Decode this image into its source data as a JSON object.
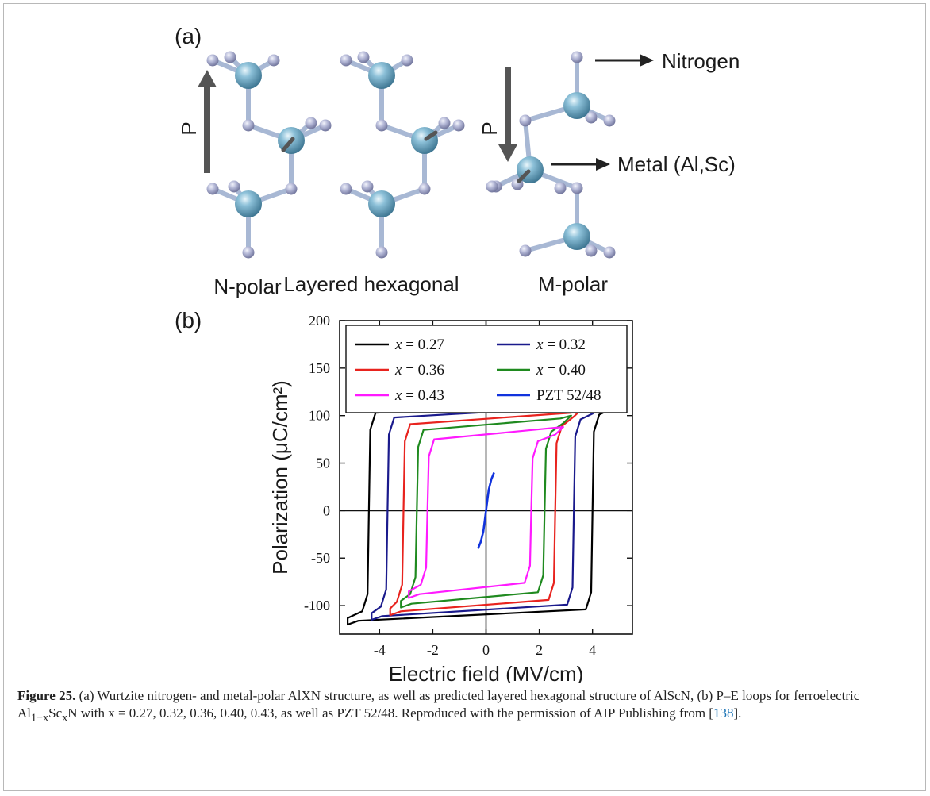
{
  "panel_a": {
    "label": "(a)",
    "structures": [
      {
        "name": "N-polar",
        "arrow_label": "P",
        "arrow_dir": "up"
      },
      {
        "name": "Layered hexagonal"
      },
      {
        "name": "M-polar",
        "arrow_label": "P",
        "arrow_dir": "down"
      }
    ],
    "legend": {
      "nitrogen": "Nitrogen",
      "metal": "Metal (Al,Sc)"
    },
    "colors": {
      "metal_atom": "#5d97b3",
      "nitrogen_atom": "#9ea3c6",
      "bond": "#a8b8d4",
      "arrow": "#555555"
    }
  },
  "panel_b": {
    "label": "(b)"
  },
  "chart_data": {
    "type": "line",
    "xlabel": "Electric field (MV/cm)",
    "ylabel": "Polarization (μC/cm²)",
    "xlim": [
      -5.5,
      5.5
    ],
    "ylim": [
      -130,
      200
    ],
    "xticks": [
      -4,
      -2,
      0,
      2,
      4
    ],
    "xtick_labels": [
      "-4",
      "-2",
      "0",
      "2",
      "4"
    ],
    "yticks": [
      -100,
      -50,
      0,
      50,
      100,
      150,
      200
    ],
    "ytick_labels": [
      "-100",
      "-50",
      "0",
      "50",
      "100",
      "150",
      "200"
    ],
    "zero_lines": true,
    "legend_position": "top",
    "series": [
      {
        "name": "x = 0.27",
        "color": "#000000",
        "ec_pos": 4.0,
        "ec_neg": -4.4,
        "pr_top": 105,
        "pr_bot": -108,
        "ps": 118,
        "x_max": 5.2
      },
      {
        "name": "x = 0.32",
        "color": "#1a1a8c",
        "ec_pos": 3.3,
        "ec_neg": -3.7,
        "pr_top": 100,
        "pr_bot": -103,
        "ps": 110,
        "x_max": 4.3
      },
      {
        "name": "x = 0.36",
        "color": "#e8231e",
        "ec_pos": 2.6,
        "ec_neg": -3.1,
        "pr_top": 93,
        "pr_bot": -98,
        "ps": 107,
        "x_max": 3.6
      },
      {
        "name": "x = 0.40",
        "color": "#1f8a1f",
        "ec_pos": 2.2,
        "ec_neg": -2.6,
        "pr_top": 87,
        "pr_bot": -90,
        "ps": 100,
        "x_max": 3.2
      },
      {
        "name": "x = 0.43",
        "color": "#ff1aff",
        "ec_pos": 1.7,
        "ec_neg": -2.2,
        "pr_top": 77,
        "pr_bot": -80,
        "ps": 88,
        "x_max": 2.9
      },
      {
        "name": "PZT 52/48",
        "color": "#1133dd",
        "points": [
          [
            -0.3,
            -40
          ],
          [
            -0.2,
            -33
          ],
          [
            -0.1,
            -22
          ],
          [
            0.0,
            0
          ],
          [
            0.1,
            22
          ],
          [
            0.2,
            33
          ],
          [
            0.3,
            40
          ]
        ]
      }
    ],
    "legend_entries": [
      {
        "prefix": "x",
        "text": " = 0.27"
      },
      {
        "prefix": "x",
        "text": " = 0.32"
      },
      {
        "prefix": "x",
        "text": " = 0.36"
      },
      {
        "prefix": "x",
        "text": " = 0.40"
      },
      {
        "prefix": "x",
        "text": " = 0.43"
      },
      {
        "prefix": "",
        "text": "PZT 52/48"
      }
    ]
  },
  "caption": {
    "figure_label": "Figure 25.",
    "text_1": " (a) Wurtzite nitrogen- and metal-polar AlXN structure, as well as predicted layered hexagonal structure of AlScN, (b) P–E loops for ferroelectric Al",
    "sub_1": "1−x",
    "text_2": "Sc",
    "sub_2": "x",
    "text_3": "N with x = 0.27, 0.32, 0.36, 0.40, 0.43, as well as PZT 52/48. Reproduced with the permission of AIP Publishing from [",
    "ref": "138",
    "text_4": "]."
  }
}
